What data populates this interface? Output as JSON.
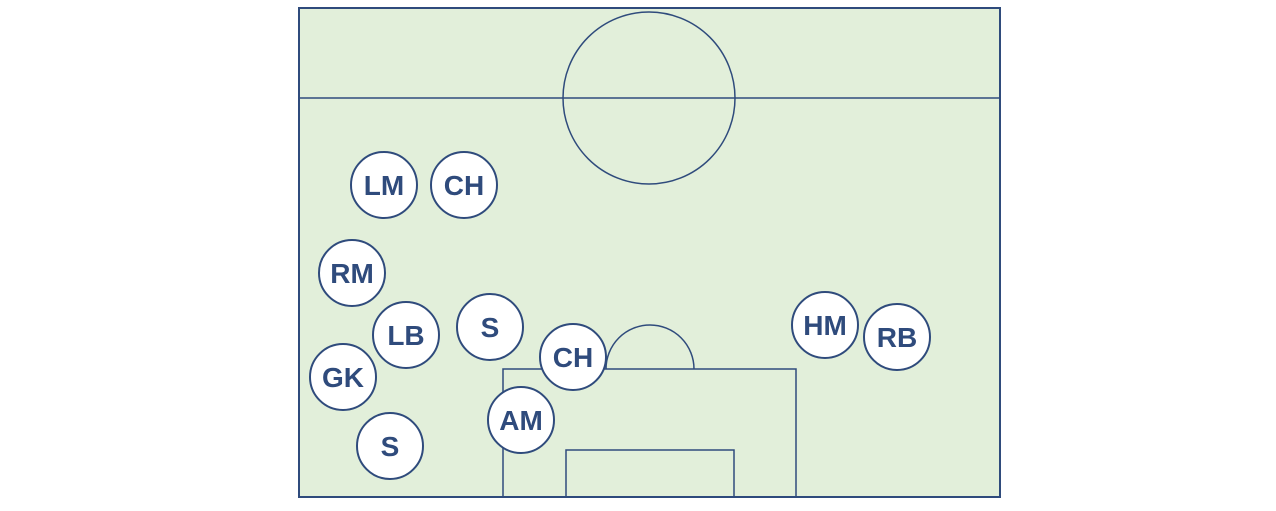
{
  "colors": {
    "pitch_fill": "#e2efda",
    "line": "#2f4b7c",
    "player_fill": "#ffffff",
    "player_text": "#2f4b7c"
  },
  "players": [
    {
      "label": "LM"
    },
    {
      "label": "CH"
    },
    {
      "label": "RM"
    },
    {
      "label": "LB"
    },
    {
      "label": "S"
    },
    {
      "label": "CH"
    },
    {
      "label": "GK"
    },
    {
      "label": "AM"
    },
    {
      "label": "S"
    },
    {
      "label": "HM"
    },
    {
      "label": "RB"
    }
  ]
}
